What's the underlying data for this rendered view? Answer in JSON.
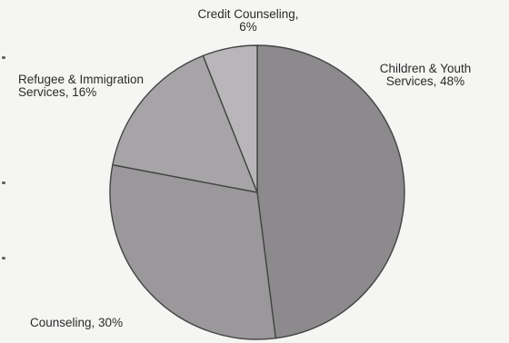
{
  "chart_data": {
    "type": "pie",
    "title": "",
    "slices": [
      {
        "label": "Children & Youth Services",
        "label_lines": [
          "Children & Youth",
          "Services, 48%"
        ],
        "value": 48,
        "color": "#8c8a8c"
      },
      {
        "label": "Counseling",
        "label_lines": [
          "Counseling, 30%"
        ],
        "value": 30,
        "color": "#9a989a"
      },
      {
        "label": "Refugee & Immigration Services",
        "label_lines": [
          "Refugee & Immigration",
          "Services, 16%"
        ],
        "value": 16,
        "color": "#a6a4a6"
      },
      {
        "label": "Credit Counseling",
        "label_lines": [
          "Credit Counseling,",
          "6%"
        ],
        "value": 6,
        "color": "#b8b6b8"
      }
    ],
    "start_angle": "top",
    "direction": "clockwise",
    "legend": "none"
  }
}
